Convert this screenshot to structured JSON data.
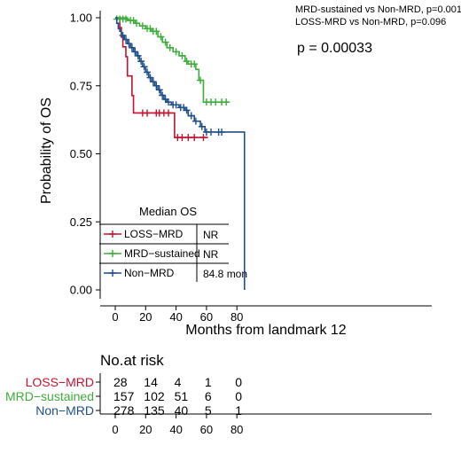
{
  "chart_data": {
    "type": "line",
    "subtype": "kaplan-meier",
    "xlabel": "Months from landmark 12",
    "ylabel": "Probability of OS",
    "xlim": [
      -3,
      90
    ],
    "ylim": [
      0,
      1.02
    ],
    "xticks": [
      "0",
      "20",
      "40",
      "60",
      "80"
    ],
    "xtick_values": [
      0,
      20,
      40,
      60,
      80
    ],
    "yticks": [
      "0.00",
      "0.25",
      "0.50",
      "0.75",
      "1.00"
    ],
    "ytick_values": [
      0,
      0.25,
      0.5,
      0.75,
      1.0
    ],
    "grid": false,
    "annotations": {
      "comparison_1": "MRD-sustained vs Non-MRD, p=0.001",
      "comparison_2": "LOSS-MRD vs Non-MRD, p=0.096",
      "p_value": "p = 0.00033"
    },
    "legend": {
      "title": "Median OS",
      "placement": "bottom-left",
      "entries": [
        {
          "name": "LOSS−MRD",
          "median": "NR"
        },
        {
          "name": "MRD−sustained",
          "median": "NR"
        },
        {
          "name": "Non−MRD",
          "median": "84.8 mon"
        }
      ]
    },
    "series": [
      {
        "name": "LOSS−MRD",
        "color": "#c4122f",
        "steps": [
          [
            0,
            1.0
          ],
          [
            3,
            0.964
          ],
          [
            4,
            0.929
          ],
          [
            5,
            0.893
          ],
          [
            7,
            0.857
          ],
          [
            8,
            0.786
          ],
          [
            11,
            0.714
          ],
          [
            12,
            0.65
          ],
          [
            38,
            0.65
          ],
          [
            39,
            0.56
          ],
          [
            61,
            0.56
          ]
        ],
        "censors": [
          [
            18,
            0.65
          ],
          [
            21,
            0.65
          ],
          [
            27,
            0.65
          ],
          [
            29,
            0.65
          ],
          [
            32,
            0.65
          ],
          [
            35,
            0.65
          ],
          [
            41,
            0.56
          ],
          [
            44,
            0.56
          ],
          [
            48,
            0.56
          ],
          [
            52,
            0.56
          ],
          [
            58,
            0.56
          ]
        ]
      },
      {
        "name": "MRD−sustained",
        "color": "#3cad3a",
        "steps": [
          [
            0,
            1.0
          ],
          [
            8,
            0.99
          ],
          [
            13,
            0.98
          ],
          [
            16,
            0.97
          ],
          [
            20,
            0.96
          ],
          [
            24,
            0.95
          ],
          [
            28,
            0.93
          ],
          [
            31,
            0.91
          ],
          [
            34,
            0.89
          ],
          [
            38,
            0.875
          ],
          [
            42,
            0.86
          ],
          [
            46,
            0.84
          ],
          [
            48,
            0.83
          ],
          [
            53,
            0.81
          ],
          [
            55,
            0.77
          ],
          [
            58,
            0.69
          ],
          [
            75,
            0.69
          ]
        ],
        "censors": [
          [
            1,
            0.995
          ],
          [
            3,
            0.995
          ],
          [
            5,
            0.995
          ],
          [
            7,
            0.995
          ],
          [
            10,
            0.99
          ],
          [
            12,
            0.99
          ],
          [
            14,
            0.98
          ],
          [
            18,
            0.97
          ],
          [
            21,
            0.96
          ],
          [
            23,
            0.96
          ],
          [
            25,
            0.95
          ],
          [
            27,
            0.95
          ],
          [
            30,
            0.93
          ],
          [
            33,
            0.91
          ],
          [
            36,
            0.89
          ],
          [
            40,
            0.875
          ],
          [
            44,
            0.86
          ],
          [
            47,
            0.84
          ],
          [
            50,
            0.83
          ],
          [
            52,
            0.83
          ],
          [
            56,
            0.77
          ],
          [
            60,
            0.69
          ],
          [
            63,
            0.69
          ],
          [
            66,
            0.69
          ],
          [
            70,
            0.69
          ],
          [
            73,
            0.69
          ]
        ]
      },
      {
        "name": "Non−MRD",
        "color": "#1f4e8c",
        "steps": [
          [
            0,
            1.0
          ],
          [
            1,
            0.98
          ],
          [
            2,
            0.96
          ],
          [
            3,
            0.95
          ],
          [
            4,
            0.935
          ],
          [
            6,
            0.92
          ],
          [
            8,
            0.905
          ],
          [
            10,
            0.89
          ],
          [
            12,
            0.875
          ],
          [
            14,
            0.86
          ],
          [
            16,
            0.84
          ],
          [
            18,
            0.82
          ],
          [
            20,
            0.8
          ],
          [
            22,
            0.78
          ],
          [
            24,
            0.765
          ],
          [
            26,
            0.75
          ],
          [
            28,
            0.735
          ],
          [
            30,
            0.715
          ],
          [
            32,
            0.7
          ],
          [
            34,
            0.69
          ],
          [
            37,
            0.68
          ],
          [
            42,
            0.67
          ],
          [
            46,
            0.66
          ],
          [
            48,
            0.64
          ],
          [
            52,
            0.62
          ],
          [
            56,
            0.6
          ],
          [
            59,
            0.58
          ],
          [
            85,
            0.58
          ],
          [
            85,
            0.0
          ]
        ],
        "censors": [
          [
            5,
            0.935
          ],
          [
            7,
            0.92
          ],
          [
            9,
            0.905
          ],
          [
            11,
            0.89
          ],
          [
            13,
            0.875
          ],
          [
            15,
            0.86
          ],
          [
            17,
            0.84
          ],
          [
            19,
            0.82
          ],
          [
            21,
            0.8
          ],
          [
            23,
            0.78
          ],
          [
            25,
            0.765
          ],
          [
            27,
            0.75
          ],
          [
            29,
            0.735
          ],
          [
            31,
            0.715
          ],
          [
            33,
            0.7
          ],
          [
            35,
            0.69
          ],
          [
            38,
            0.68
          ],
          [
            40,
            0.68
          ],
          [
            43,
            0.67
          ],
          [
            45,
            0.67
          ],
          [
            47,
            0.66
          ],
          [
            50,
            0.64
          ],
          [
            53,
            0.62
          ],
          [
            57,
            0.6
          ],
          [
            60,
            0.58
          ],
          [
            63,
            0.58
          ],
          [
            68,
            0.58
          ],
          [
            70,
            0.58
          ]
        ]
      }
    ],
    "risk_table": {
      "title": "No.at risk",
      "times": [
        0,
        20,
        40,
        60,
        80
      ],
      "rows": [
        {
          "name": "LOSS−MRD",
          "color": "#c4122f",
          "values": [
            "28",
            "14",
            "4",
            "1",
            "0"
          ]
        },
        {
          "name": "MRD−sustained",
          "color": "#3cad3a",
          "values": [
            "157",
            "102",
            "51",
            "6",
            "0"
          ]
        },
        {
          "name": "Non−MRD",
          "color": "#1f4e8c",
          "values": [
            "278",
            "135",
            "40",
            "5",
            "1"
          ]
        }
      ]
    }
  }
}
